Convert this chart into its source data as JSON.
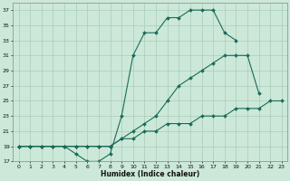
{
  "xlabel": "Humidex (Indice chaleur)",
  "background_color": "#cce8d8",
  "grid_color": "#aaccbb",
  "line_color": "#1a6b5a",
  "xlim": [
    -0.5,
    23.5
  ],
  "ylim": [
    17,
    38
  ],
  "yticks": [
    17,
    19,
    21,
    23,
    25,
    27,
    29,
    31,
    33,
    35,
    37
  ],
  "xticks": [
    0,
    1,
    2,
    3,
    4,
    5,
    6,
    7,
    8,
    9,
    10,
    11,
    12,
    13,
    14,
    15,
    16,
    17,
    18,
    19,
    20,
    21,
    22,
    23
  ],
  "series1_x": [
    0,
    1,
    2,
    3,
    4,
    5,
    6,
    7,
    8,
    9,
    10,
    11,
    12,
    13,
    14,
    15,
    16,
    17,
    18,
    19
  ],
  "series1_y": [
    19,
    19,
    19,
    19,
    19,
    18,
    17,
    17,
    18,
    23,
    31,
    34,
    34,
    36,
    36,
    37,
    37,
    37,
    34,
    33
  ],
  "series2_x": [
    0,
    1,
    2,
    3,
    4,
    5,
    6,
    7,
    8,
    9,
    10,
    11,
    12,
    13,
    14,
    15,
    16,
    17,
    18,
    19,
    20,
    21
  ],
  "series2_y": [
    19,
    19,
    19,
    19,
    19,
    19,
    19,
    19,
    19,
    20,
    21,
    22,
    23,
    25,
    27,
    28,
    29,
    30,
    31,
    31,
    31,
    26
  ],
  "series3_x": [
    0,
    1,
    2,
    3,
    4,
    5,
    6,
    7,
    8,
    9,
    10,
    11,
    12,
    13,
    14,
    15,
    16,
    17,
    18,
    19,
    20,
    21,
    22,
    23
  ],
  "series3_y": [
    19,
    19,
    19,
    19,
    19,
    19,
    19,
    19,
    19,
    20,
    20,
    21,
    21,
    22,
    22,
    22,
    23,
    23,
    23,
    24,
    24,
    24,
    25,
    25
  ]
}
